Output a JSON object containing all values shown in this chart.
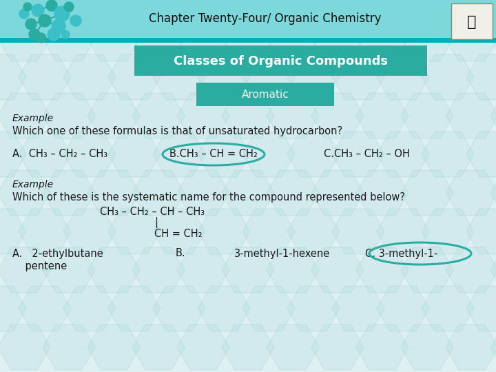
{
  "title": "Chapter Twenty-Four/ Organic Chemistry",
  "header_bg": "#7dd8dc",
  "header_bar_color": "#00b0b8",
  "slide_bg": "#dff0f2",
  "box1_text": "Classes of Organic Compounds",
  "box1_bg": "#2aada0",
  "box1_text_color": "#ffffff",
  "box2_text": "Aromatic",
  "box2_bg": "#2aada0",
  "box2_text_color": "#f5f5f5",
  "example1_label": "Example",
  "question1": "Which one of these formulas is that of unsaturated hydrocarbon?",
  "optionA1": "A.  CH₃ – CH₂ – CH₃",
  "optionB1": "B.CH₃ – CH = CH₂",
  "optionC1": "C.CH₃ – CH₂ – OH",
  "example2_label": "Example",
  "question2": "Which of these is the systematic name for the compound represented below?",
  "compound_line1": "CH₃ – CH₂ – CH – CH₃",
  "compound_line2": "|",
  "compound_line3": "CH = CH₂",
  "optionA2": "A.   2-ethylbutane",
  "optionB2": "B.",
  "optionC2": "3-methyl-1-hexene",
  "optionD2": "C. 3-methyl-1-",
  "optionE2": "    pentene",
  "ellipse1_color": "#2aada0",
  "ellipse2_color": "#2aada0",
  "text_color": "#1a1a1a",
  "hex_color": "#cce9ec"
}
